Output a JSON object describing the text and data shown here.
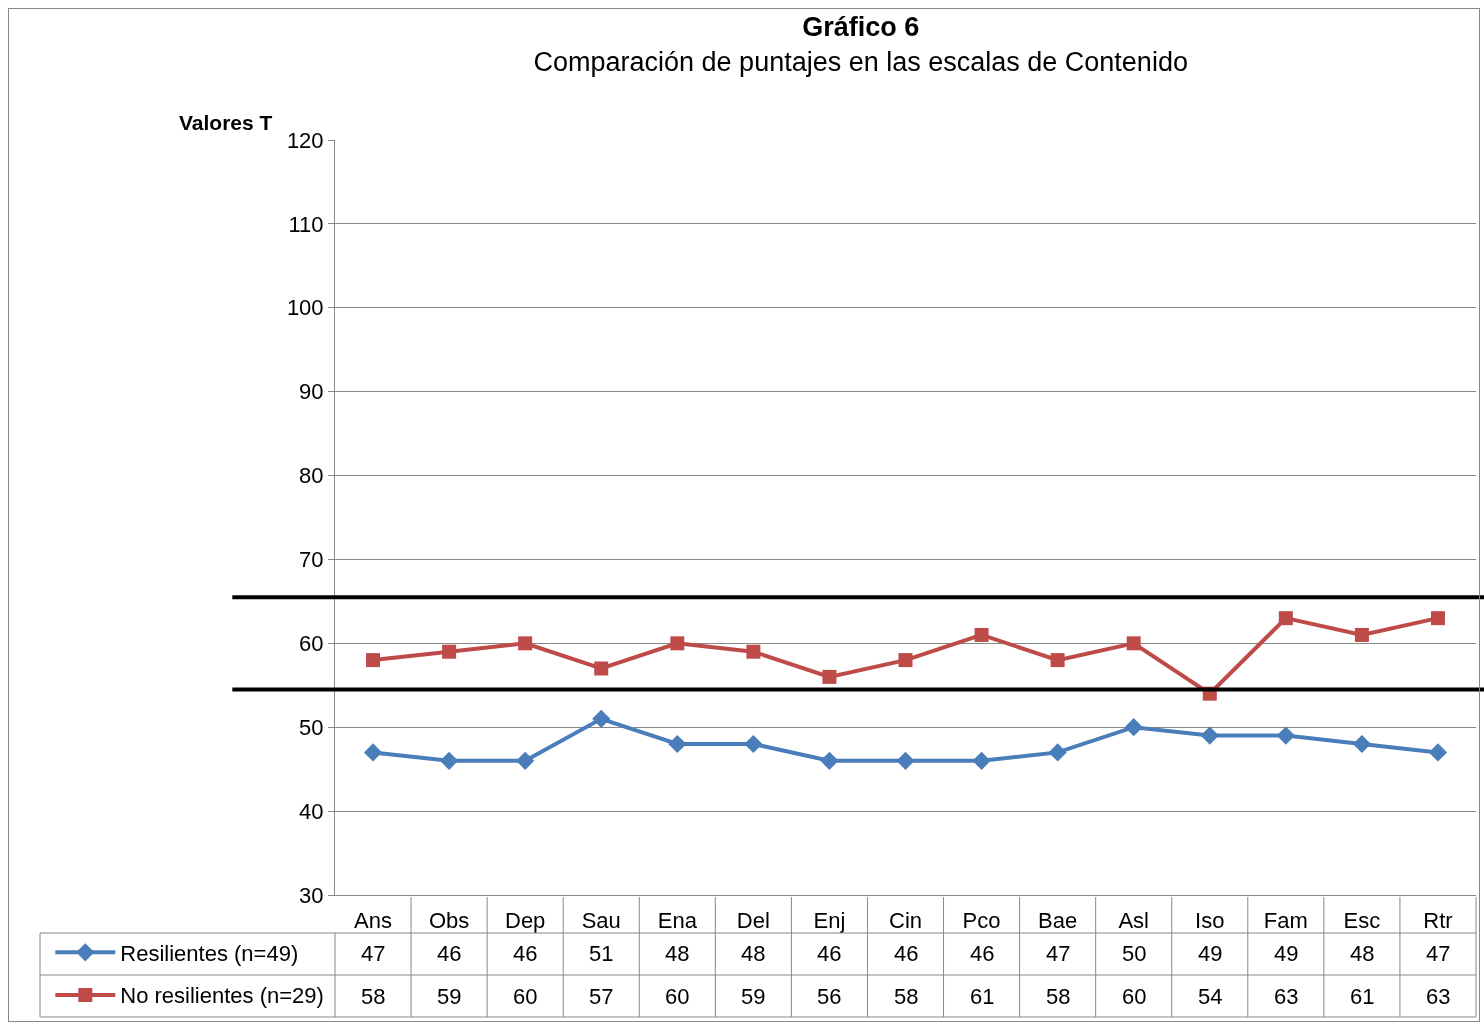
{
  "chart_data": {
    "type": "line",
    "title": "Gráfico 6",
    "subtitle": "Comparación de puntajes en las escalas de Contenido",
    "ylabel": "Valores T",
    "categories": [
      "Ans",
      "Obs",
      "Dep",
      "Sau",
      "Ena",
      "Del",
      "Enj",
      "Cin",
      "Pco",
      "Bae",
      "Asl",
      "Iso",
      "Fam",
      "Esc",
      "Rtr"
    ],
    "series": [
      {
        "name": "Resilientes (n=49)",
        "color": "#4a7ebb",
        "marker": "diamond",
        "values": [
          47,
          46,
          46,
          51,
          48,
          48,
          46,
          46,
          46,
          47,
          50,
          49,
          49,
          48,
          47
        ]
      },
      {
        "name": "No resilientes (n=29)",
        "color": "#be4b48",
        "marker": "square",
        "values": [
          58,
          59,
          60,
          57,
          60,
          59,
          56,
          58,
          61,
          58,
          60,
          54,
          63,
          61,
          63
        ]
      }
    ],
    "ylim": [
      30,
      120
    ],
    "yticks": [
      30,
      40,
      50,
      60,
      70,
      80,
      90,
      100,
      110,
      120
    ],
    "grid": "y",
    "legend": "bottom left",
    "data_labels": true,
    "line_style": "solid",
    "ref_lines": [
      {
        "axis": "y",
        "value": 65.5,
        "color": "#000000"
      },
      {
        "axis": "y",
        "value": 54.5,
        "color": "#000000"
      }
    ]
  }
}
